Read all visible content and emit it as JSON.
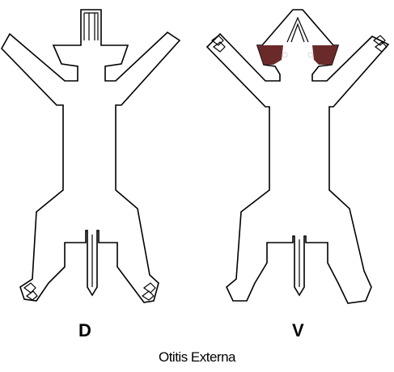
{
  "views": {
    "dorsal_label": "D",
    "ventral_label": "V"
  },
  "caption": "Otitis Externa",
  "colors": {
    "lesion": "#6b2a2a",
    "outline": "#000000",
    "background": "#ffffff"
  }
}
